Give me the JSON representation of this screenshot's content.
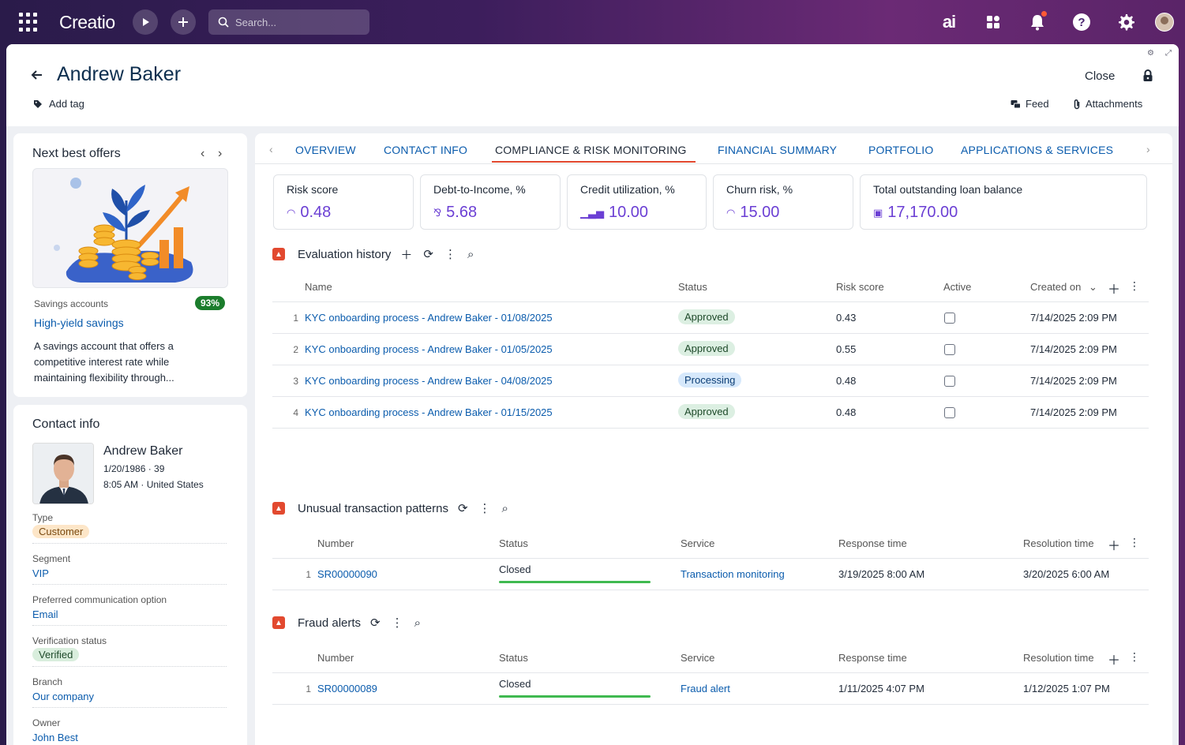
{
  "topbar": {
    "logo": "Creatio",
    "search_placeholder": "Search...",
    "ai_label": "ai"
  },
  "header": {
    "title": "Andrew Baker",
    "add_tag": "Add tag",
    "close": "Close",
    "feed": "Feed",
    "attachments": "Attachments"
  },
  "next_best_offers": {
    "title": "Next best offers",
    "category": "Savings accounts",
    "score": "93%",
    "offer_name": "High-yield savings",
    "description": "A savings account that offers a competitive interest rate while maintaining flexibility through..."
  },
  "contact_info": {
    "title": "Contact info",
    "name": "Andrew Baker",
    "dob_age": "1/20/1986 · 39",
    "time_location": "8:05 AM · United States",
    "fields": [
      {
        "label": "Type",
        "value": "Customer"
      },
      {
        "label": "Segment",
        "value": "VIP"
      },
      {
        "label": "Preferred communication option",
        "value": "Email"
      },
      {
        "label": "Verification status",
        "value": "Verified"
      },
      {
        "label": "Branch",
        "value": "Our company"
      },
      {
        "label": "Owner",
        "value": "John Best"
      }
    ]
  },
  "tabs": [
    {
      "label": "OVERVIEW"
    },
    {
      "label": "CONTACT INFO"
    },
    {
      "label": "COMPLIANCE & RISK MONITORING"
    },
    {
      "label": "FINANCIAL SUMMARY"
    },
    {
      "label": "PORTFOLIO"
    },
    {
      "label": "APPLICATIONS & SERVICES"
    }
  ],
  "metrics": [
    {
      "label": "Risk score",
      "value": "0.48"
    },
    {
      "label": "Debt-to-Income, %",
      "value": "5.68"
    },
    {
      "label": "Credit utilization, %",
      "value": "10.00"
    },
    {
      "label": "Churn risk, %",
      "value": "15.00"
    },
    {
      "label": "Total outstanding loan balance",
      "value": "17,170.00"
    }
  ],
  "evaluation_history": {
    "title": "Evaluation history",
    "columns": {
      "name": "Name",
      "status": "Status",
      "risk": "Risk score",
      "active": "Active",
      "created": "Created on"
    },
    "rows": [
      {
        "num": "1",
        "name": "KYC onboarding process - Andrew Baker - 01/08/2025",
        "status": "Approved",
        "risk": "0.43",
        "created": "7/14/2025 2:09 PM"
      },
      {
        "num": "2",
        "name": "KYC onboarding process - Andrew Baker - 01/05/2025",
        "status": "Approved",
        "risk": "0.55",
        "created": "7/14/2025 2:09 PM"
      },
      {
        "num": "3",
        "name": "KYC onboarding process - Andrew Baker - 04/08/2025",
        "status": "Processing",
        "risk": "0.48",
        "created": "7/14/2025 2:09 PM"
      },
      {
        "num": "4",
        "name": "KYC onboarding process - Andrew Baker - 01/15/2025",
        "status": "Approved",
        "risk": "0.48",
        "created": "7/14/2025 2:09 PM"
      }
    ]
  },
  "unusual_transactions": {
    "title": "Unusual transaction patterns",
    "columns": {
      "number": "Number",
      "status": "Status",
      "service": "Service",
      "response": "Response time",
      "resolution": "Resolution time"
    },
    "rows": [
      {
        "num": "1",
        "number": "SR00000090",
        "status": "Closed",
        "service": "Transaction monitoring",
        "response": "3/19/2025 8:00 AM",
        "resolution": "3/20/2025 6:00 AM"
      }
    ]
  },
  "fraud_alerts": {
    "title": "Fraud alerts",
    "columns": {
      "number": "Number",
      "status": "Status",
      "service": "Service",
      "response": "Response time",
      "resolution": "Resolution time"
    },
    "rows": [
      {
        "num": "1",
        "number": "SR00000089",
        "status": "Closed",
        "service": "Fraud alert",
        "response": "1/11/2025 4:07 PM",
        "resolution": "1/12/2025 1:07 PM"
      }
    ]
  }
}
